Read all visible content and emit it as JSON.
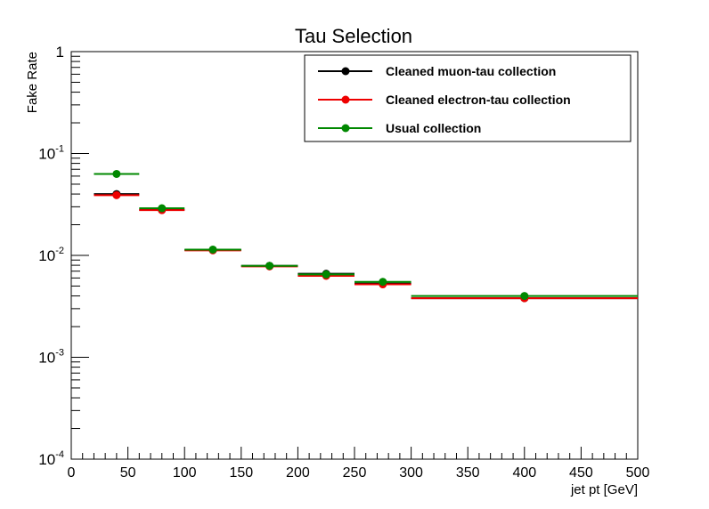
{
  "chart_data": {
    "type": "scatter",
    "title": "Tau Selection",
    "xlabel": "jet pt [GeV]",
    "ylabel": "Fake Rate",
    "xlim": [
      0,
      500
    ],
    "ylim": [
      0.0001,
      1
    ],
    "yscale": "log",
    "grid": false,
    "legend_position": "top-right",
    "x_ticks": [
      "0",
      "50",
      "100",
      "150",
      "200",
      "250",
      "300",
      "350",
      "400",
      "450",
      "500"
    ],
    "y_ticks": [
      {
        "base": "10",
        "exp": "-4"
      },
      {
        "base": "10",
        "exp": "-3"
      },
      {
        "base": "10",
        "exp": "-2"
      },
      {
        "base": "10",
        "exp": "-1"
      },
      {
        "base": "1",
        "exp": ""
      }
    ],
    "bins": [
      [
        20,
        60
      ],
      [
        60,
        100
      ],
      [
        100,
        150
      ],
      [
        150,
        200
      ],
      [
        200,
        250
      ],
      [
        250,
        300
      ],
      [
        300,
        500
      ]
    ],
    "series": [
      {
        "name": "Cleaned muon-tau collection",
        "color": "#000000",
        "values": [
          0.04,
          0.028,
          0.0113,
          0.0079,
          0.0066,
          0.0053,
          0.0038
        ]
      },
      {
        "name": "Cleaned electron-tau collection",
        "color": "#ee0000",
        "values": [
          0.039,
          0.0278,
          0.0112,
          0.0078,
          0.0063,
          0.0052,
          0.0038
        ]
      },
      {
        "name": "Usual collection",
        "color": "#008800",
        "values": [
          0.063,
          0.029,
          0.0114,
          0.0079,
          0.0065,
          0.0055,
          0.004
        ]
      }
    ]
  }
}
